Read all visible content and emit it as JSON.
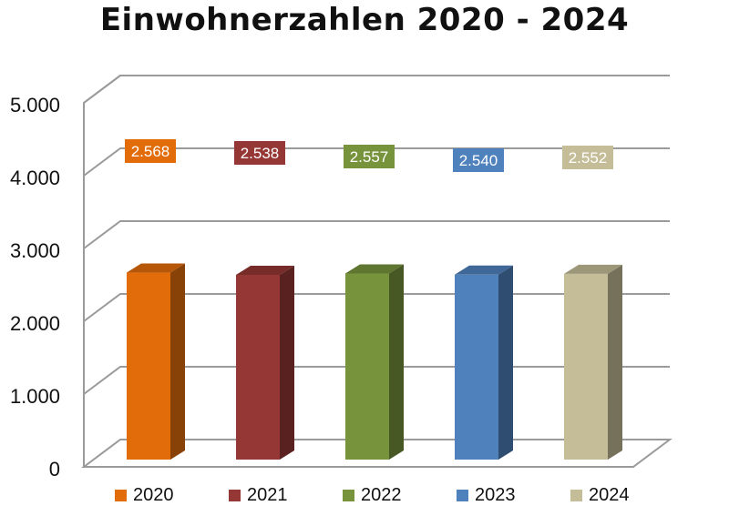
{
  "chart_data": {
    "type": "bar",
    "title": "Einwohnerzahlen 2020 - 2024",
    "ylim": [
      0,
      5000
    ],
    "y_ticks": [
      {
        "value": 0,
        "label": "0"
      },
      {
        "value": 1000,
        "label": "1.000"
      },
      {
        "value": 2000,
        "label": "2.000"
      },
      {
        "value": 3000,
        "label": "3.000"
      },
      {
        "value": 4000,
        "label": "4.000"
      },
      {
        "value": 5000,
        "label": "5.000"
      }
    ],
    "grid": true,
    "three_d": true,
    "legend_position": "bottom",
    "series": [
      {
        "name": "2020",
        "value": 2568,
        "label": "2.568",
        "color": "#E36C0A"
      },
      {
        "name": "2021",
        "value": 2538,
        "label": "2.538",
        "color": "#953735"
      },
      {
        "name": "2022",
        "value": 2557,
        "label": "2.557",
        "color": "#77933C"
      },
      {
        "name": "2023",
        "value": 2540,
        "label": "2.540",
        "color": "#4F81BD"
      },
      {
        "name": "2024",
        "value": 2552,
        "label": "2.552",
        "color": "#C4BD97"
      }
    ]
  }
}
